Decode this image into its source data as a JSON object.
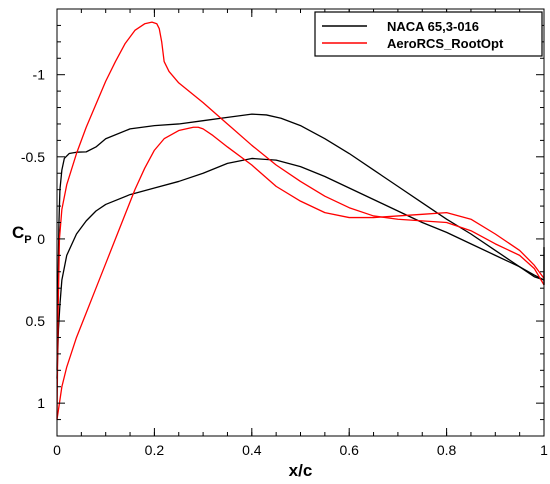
{
  "chart_data": {
    "type": "line",
    "xlabel": "x/c",
    "ylabel": "C",
    "ylabel_subscript": "P",
    "xlim": [
      0,
      1
    ],
    "ylim": [
      1.2,
      -1.4
    ],
    "y_inverted": true,
    "grid": false,
    "legend_position": "top-right",
    "x_ticks": [
      {
        "value": 0,
        "label": "0"
      },
      {
        "value": 0.2,
        "label": "0.2"
      },
      {
        "value": 0.4,
        "label": "0.4"
      },
      {
        "value": 0.6,
        "label": "0.6"
      },
      {
        "value": 0.8,
        "label": "0.8"
      },
      {
        "value": 1,
        "label": "1"
      }
    ],
    "y_ticks": [
      {
        "value": -1,
        "label": "-1"
      },
      {
        "value": -0.5,
        "label": "-0.5"
      },
      {
        "value": 0,
        "label": "0"
      },
      {
        "value": 0.5,
        "label": "0.5"
      },
      {
        "value": 1,
        "label": "1"
      }
    ],
    "series": [
      {
        "name": "NACA 65,3-016",
        "color": "#000000",
        "curves": [
          {
            "x": [
              0.0,
              0.002,
              0.004,
              0.006,
              0.01,
              0.015,
              0.025,
              0.04,
              0.06,
              0.08,
              0.1,
              0.15,
              0.2,
              0.25,
              0.3,
              0.35,
              0.4,
              0.43,
              0.46,
              0.5,
              0.55,
              0.6,
              0.65,
              0.7,
              0.75,
              0.8,
              0.85,
              0.9,
              0.95,
              0.98,
              1.0
            ],
            "y": [
              0.8,
              0.3,
              -0.1,
              -0.3,
              -0.42,
              -0.49,
              -0.52,
              -0.528,
              -0.53,
              -0.56,
              -0.61,
              -0.67,
              -0.69,
              -0.7,
              -0.72,
              -0.74,
              -0.76,
              -0.755,
              -0.735,
              -0.69,
              -0.61,
              -0.52,
              -0.42,
              -0.32,
              -0.22,
              -0.12,
              -0.03,
              0.07,
              0.17,
              0.23,
              0.25
            ]
          },
          {
            "x": [
              0.0,
              0.003,
              0.006,
              0.01,
              0.02,
              0.04,
              0.06,
              0.08,
              0.1,
              0.15,
              0.2,
              0.25,
              0.3,
              0.35,
              0.4,
              0.45,
              0.5,
              0.55,
              0.6,
              0.65,
              0.7,
              0.75,
              0.8,
              0.85,
              0.9,
              0.95,
              0.98,
              1.0
            ],
            "y": [
              0.85,
              0.55,
              0.4,
              0.25,
              0.1,
              -0.03,
              -0.11,
              -0.17,
              -0.21,
              -0.27,
              -0.31,
              -0.35,
              -0.4,
              -0.46,
              -0.49,
              -0.48,
              -0.44,
              -0.38,
              -0.31,
              -0.24,
              -0.17,
              -0.1,
              -0.04,
              0.03,
              0.1,
              0.17,
              0.22,
              0.25
            ]
          }
        ]
      },
      {
        "name": "AeroRCS_RootOpt",
        "color": "#ff0000",
        "curves": [
          {
            "x": [
              0.0,
              0.002,
              0.005,
              0.01,
              0.02,
              0.04,
              0.06,
              0.08,
              0.1,
              0.12,
              0.14,
              0.16,
              0.18,
              0.195,
              0.205,
              0.21,
              0.215,
              0.22,
              0.23,
              0.25,
              0.3,
              0.35,
              0.4,
              0.45,
              0.5,
              0.55,
              0.6,
              0.65,
              0.7,
              0.75,
              0.8,
              0.85,
              0.9,
              0.95,
              0.98,
              1.0
            ],
            "y": [
              1.1,
              0.5,
              0.0,
              -0.18,
              -0.33,
              -0.52,
              -0.68,
              -0.82,
              -0.96,
              -1.08,
              -1.19,
              -1.27,
              -1.31,
              -1.32,
              -1.31,
              -1.28,
              -1.2,
              -1.08,
              -1.02,
              -0.95,
              -0.83,
              -0.7,
              -0.57,
              -0.45,
              -0.35,
              -0.26,
              -0.19,
              -0.14,
              -0.12,
              -0.11,
              -0.1,
              -0.05,
              0.03,
              0.1,
              0.18,
              0.28
            ]
          },
          {
            "x": [
              0.0,
              0.005,
              0.01,
              0.02,
              0.04,
              0.06,
              0.08,
              0.1,
              0.12,
              0.14,
              0.16,
              0.18,
              0.2,
              0.22,
              0.25,
              0.28,
              0.29,
              0.3,
              0.32,
              0.35,
              0.4,
              0.45,
              0.5,
              0.55,
              0.6,
              0.65,
              0.7,
              0.75,
              0.8,
              0.85,
              0.9,
              0.95,
              0.98,
              1.0
            ],
            "y": [
              1.1,
              1.0,
              0.9,
              0.78,
              0.6,
              0.45,
              0.3,
              0.15,
              0.0,
              -0.15,
              -0.3,
              -0.43,
              -0.54,
              -0.61,
              -0.66,
              -0.68,
              -0.68,
              -0.67,
              -0.63,
              -0.56,
              -0.45,
              -0.32,
              -0.23,
              -0.16,
              -0.13,
              -0.13,
              -0.14,
              -0.15,
              -0.16,
              -0.12,
              -0.03,
              0.07,
              0.16,
              0.24
            ]
          }
        ]
      }
    ],
    "te_marker": {
      "x": 1.0,
      "y_from": 0.05,
      "y_to": 0.28,
      "color": "#000000"
    }
  }
}
